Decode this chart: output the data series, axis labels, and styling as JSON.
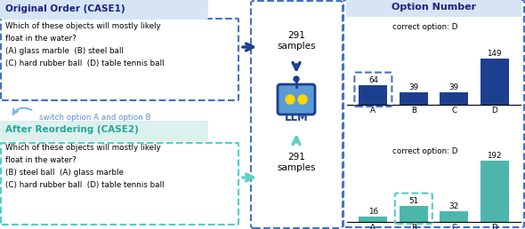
{
  "title": "Option Number",
  "title_color": "#1a237e",
  "bg_color": "#ffffff",
  "arrow_color_case1": "#1c3f8f",
  "arrow_color_case2": "#5ecfc4",
  "case1": {
    "header": "Original Order (CASE1)",
    "header_color": "#1a237e",
    "header_bg": "#d6e4f5",
    "box_border": "#4472c4",
    "text_lines": [
      "Which of these objects will mostly likely",
      "float in the water?",
      "(A) glass marble  (B) steel ball",
      "(C) hard rubber ball  (D) table tennis ball"
    ],
    "switch_text": "switch option A and option B",
    "bar_values": [
      64,
      39,
      39,
      149
    ],
    "bar_labels": [
      "A",
      "B",
      "C",
      "D"
    ],
    "bar_color": "#1c3f8f",
    "highlight_bar": 0,
    "correct_option": "correct option: D",
    "dashed_color": "#4472c4",
    "samples_text": "291\nsamples"
  },
  "case2": {
    "header": "After Reordering (CASE2)",
    "header_color": "#26a69a",
    "header_bg": "#dcf0ed",
    "box_border": "#4dd0c4",
    "text_lines": [
      "Which of these objects will mostly likely",
      "float in the water?",
      "(B) steel ball  (A) glass marble",
      "(C) hard rubber ball  (D) table tennis ball"
    ],
    "bar_values": [
      16,
      51,
      32,
      192
    ],
    "bar_labels": [
      "A",
      "B",
      "C",
      "D"
    ],
    "bar_color": "#4db6ac",
    "highlight_bar": 1,
    "correct_option": "correct option: D",
    "dashed_color": "#4dd0c4",
    "samples_text": "291\nsamples"
  }
}
